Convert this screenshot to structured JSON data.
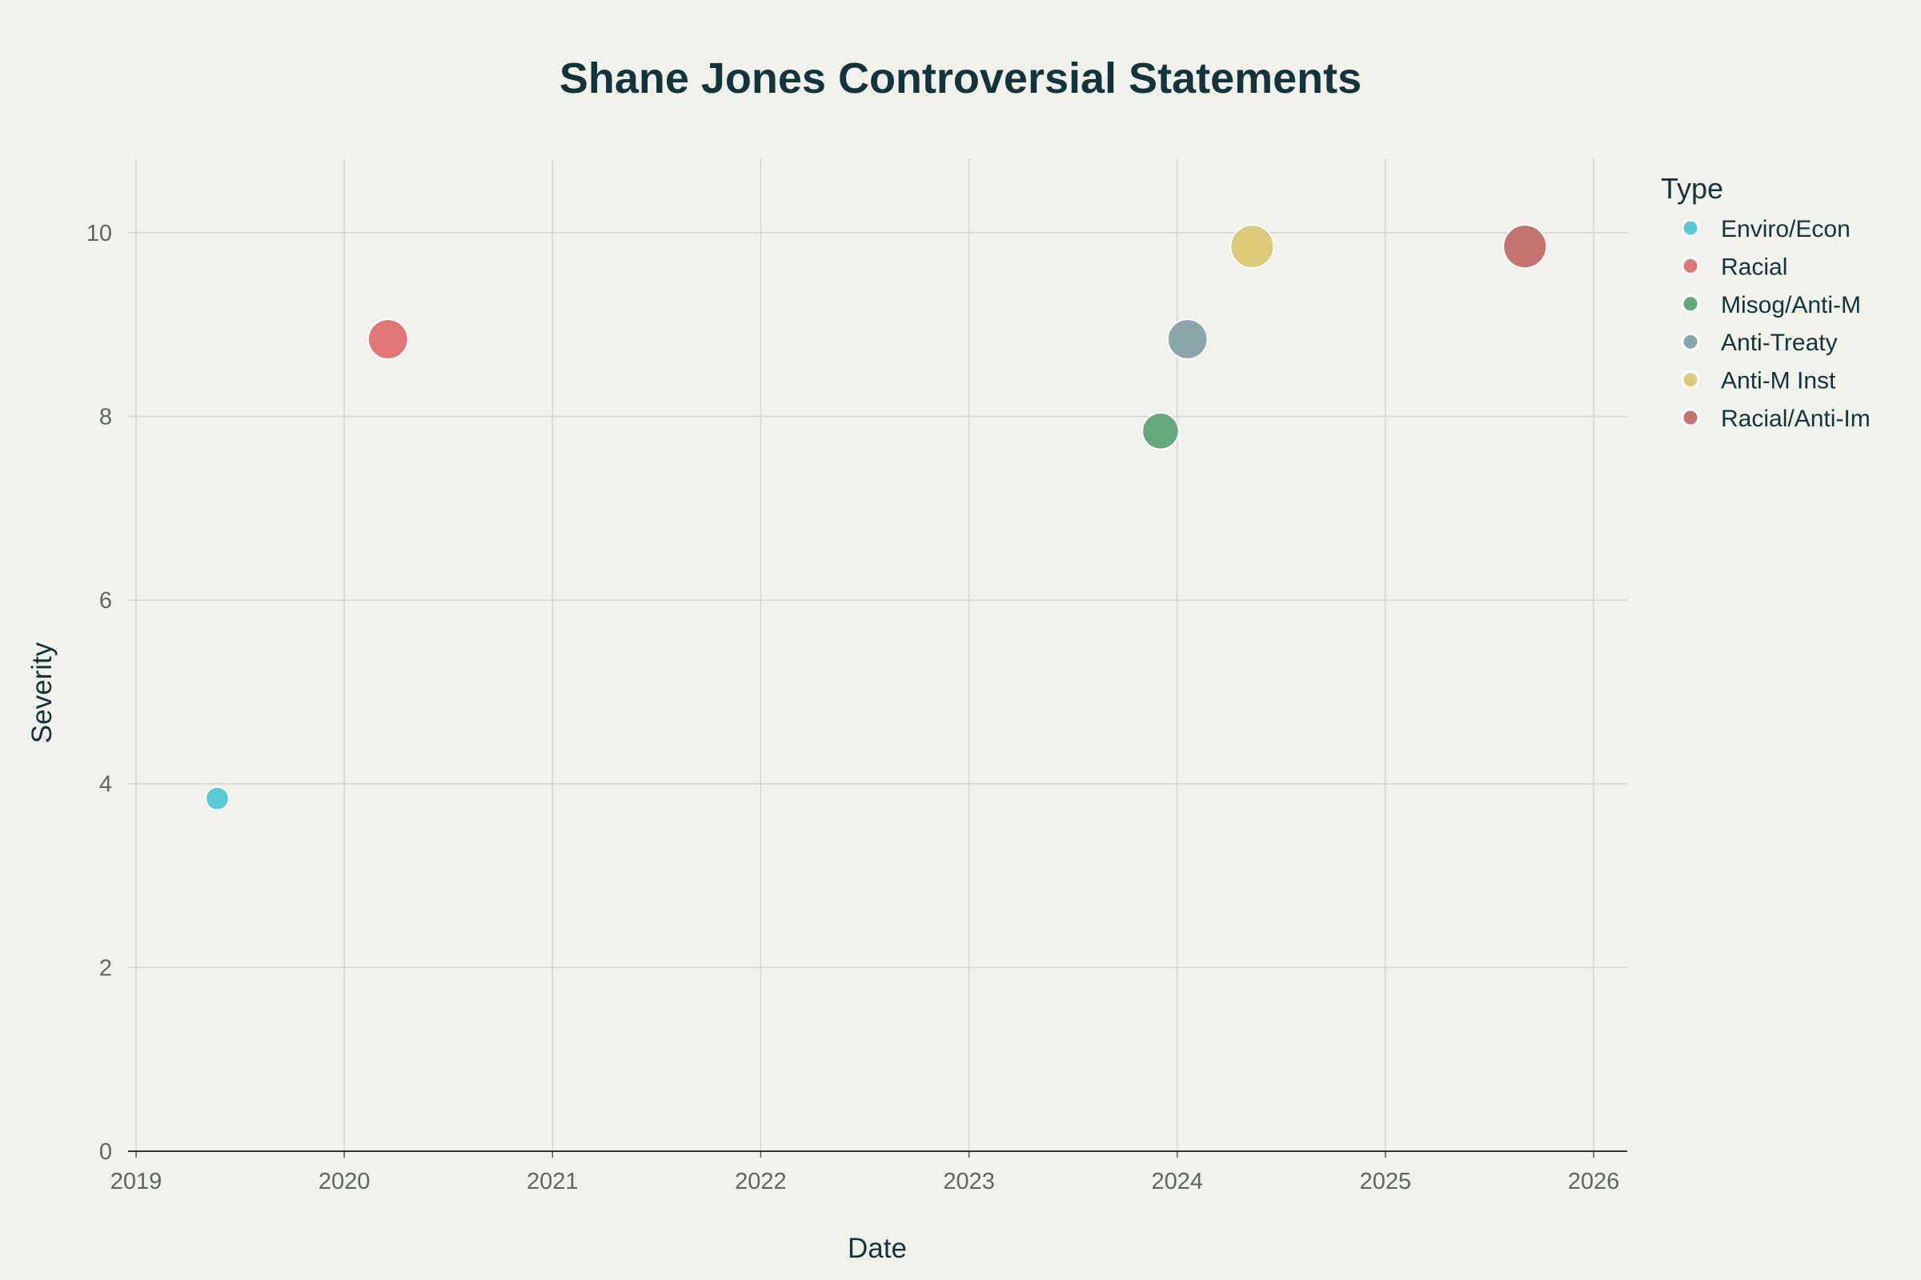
{
  "chart_data": {
    "type": "scatter",
    "title": "Shane Jones Controversial Statements",
    "xlabel": "Date",
    "ylabel": "Severity",
    "xlim": [
      2019,
      2026.16
    ],
    "ylim": [
      0,
      10.8
    ],
    "xticks": [
      "2019",
      "2020",
      "2021",
      "2022",
      "2023",
      "2024",
      "2025",
      "2026"
    ],
    "yticks": [
      "0",
      "2",
      "4",
      "6",
      "8",
      "10"
    ],
    "grid": true,
    "legend": {
      "title": "Type",
      "placement": "right"
    },
    "series": [
      {
        "name": "Enviro/Econ",
        "color": "#5bc8d6",
        "points": [
          {
            "x": 2019.39,
            "y": 3.84,
            "size": 4
          }
        ]
      },
      {
        "name": "Racial",
        "color": "#e07676",
        "points": [
          {
            "x": 2020.21,
            "y": 8.84,
            "size": 9
          }
        ]
      },
      {
        "name": "Misog/Anti-M",
        "color": "#64a87c",
        "points": [
          {
            "x": 2023.92,
            "y": 7.84,
            "size": 8
          }
        ]
      },
      {
        "name": "Anti-Treaty",
        "color": "#8ba6aa",
        "points": [
          {
            "x": 2024.05,
            "y": 8.84,
            "size": 9
          }
        ]
      },
      {
        "name": "Anti-M Inst",
        "color": "#dccb7a",
        "points": [
          {
            "x": 2024.36,
            "y": 9.85,
            "size": 10
          }
        ]
      },
      {
        "name": "Racial/Anti-Im",
        "color": "#c47370",
        "points": [
          {
            "x": 2025.67,
            "y": 9.85,
            "size": 10
          }
        ]
      }
    ]
  }
}
